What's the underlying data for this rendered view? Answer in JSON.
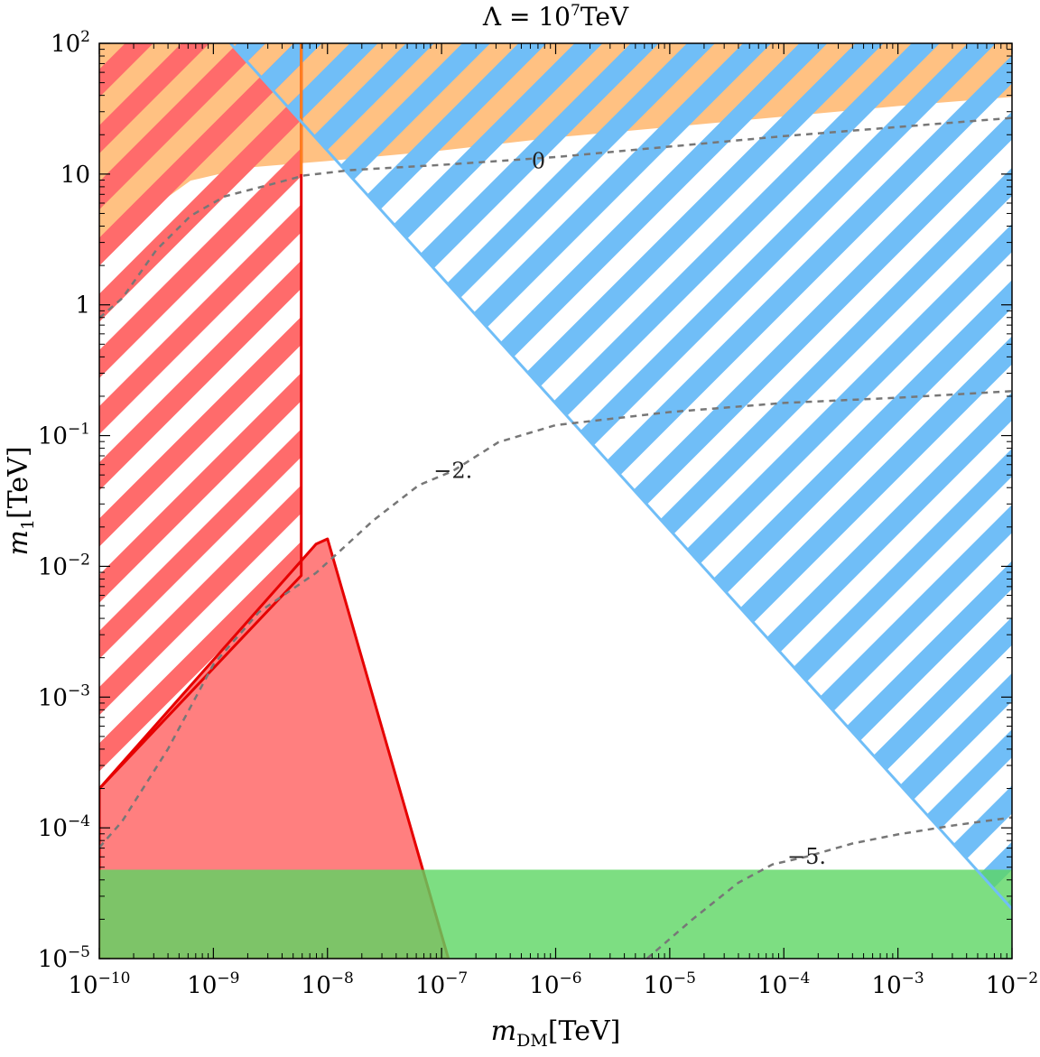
{
  "chart_data": {
    "type": "region-plot",
    "title": {
      "base": "Λ = 10",
      "sup": "7",
      "unit": "TeV"
    },
    "xlabel": {
      "sym": "m",
      "sub": "DM",
      "unit": "[TeV]"
    },
    "ylabel": {
      "sym": "m",
      "sub": "1",
      "unit": "[TeV]"
    },
    "x_scale": "log",
    "y_scale": "log",
    "x_range": [
      -10,
      -2
    ],
    "y_range": [
      -5,
      2
    ],
    "x_ticks": [
      {
        "v": -10,
        "base": "10",
        "sup": "−10"
      },
      {
        "v": -9,
        "base": "10",
        "sup": "−9"
      },
      {
        "v": -8,
        "base": "10",
        "sup": "−8"
      },
      {
        "v": -7,
        "base": "10",
        "sup": "−7"
      },
      {
        "v": -6,
        "base": "10",
        "sup": "−6"
      },
      {
        "v": -5,
        "base": "10",
        "sup": "−5"
      },
      {
        "v": -4,
        "base": "10",
        "sup": "−4"
      },
      {
        "v": -3,
        "base": "10",
        "sup": "−3"
      },
      {
        "v": -2,
        "base": "10",
        "sup": "−2"
      }
    ],
    "y_ticks": [
      {
        "v": -5,
        "base": "10",
        "sup": "−5"
      },
      {
        "v": -4,
        "base": "10",
        "sup": "−4"
      },
      {
        "v": -3,
        "base": "10",
        "sup": "−3"
      },
      {
        "v": -2,
        "base": "10",
        "sup": "−2"
      },
      {
        "v": -1,
        "base": "10",
        "sup": "−1"
      },
      {
        "v": 0,
        "base": "1",
        "sup": ""
      },
      {
        "v": 1,
        "base": "10",
        "sup": ""
      },
      {
        "v": 2,
        "base": "10",
        "sup": "2"
      }
    ],
    "regions": [
      {
        "name": "orange-solid",
        "fill": "#ffa64d",
        "opacity": 0.7,
        "boundary": [
          [
            -10,
            0.5
          ],
          [
            -9.6,
            0.7
          ],
          [
            -9.2,
            0.95
          ],
          [
            -8.7,
            1.05
          ],
          [
            -8.0,
            1.1
          ],
          [
            -7,
            1.18
          ],
          [
            -6,
            1.28
          ],
          [
            -5,
            1.36
          ],
          [
            -4,
            1.44
          ],
          [
            -3,
            1.52
          ],
          [
            -2,
            1.59
          ],
          [
            -2,
            2
          ],
          [
            -10,
            2
          ]
        ]
      },
      {
        "name": "red-hatched",
        "color": "#ff6b6b",
        "hatch": true,
        "boundary": [
          [
            -10,
            -3.7
          ],
          [
            -8.23,
            -2.07
          ],
          [
            -8.23,
            2
          ],
          [
            -10,
            2
          ]
        ]
      },
      {
        "name": "blue-hatched",
        "color": "#70bef7",
        "hatch": true,
        "boundary": [
          [
            -8.85,
            2
          ],
          [
            -2,
            2
          ],
          [
            -2,
            -4.62
          ]
        ]
      },
      {
        "name": "red-solid",
        "fill": "#ff7f7f",
        "opacity": 1.0,
        "stroke": "#e60000",
        "boundary": [
          [
            -10,
            -3.7
          ],
          [
            -8.1,
            -1.83
          ],
          [
            -8.0,
            -1.79
          ],
          [
            -6.94,
            -5
          ],
          [
            -10,
            -5
          ]
        ]
      },
      {
        "name": "green-solid",
        "fill": "#5cd663",
        "opacity": 0.8,
        "boundary": [
          [
            -10,
            -5
          ],
          [
            -2,
            -5
          ],
          [
            -2,
            -4.32
          ],
          [
            -10,
            -4.32
          ]
        ]
      }
    ],
    "boundary_lines": [
      {
        "name": "red-vertical",
        "color": "#e60000",
        "points": [
          [
            -10,
            -3.7
          ],
          [
            -8.23,
            -2.07
          ],
          [
            -8.23,
            2
          ]
        ]
      },
      {
        "name": "orange-vertical",
        "color": "#ff7f1e",
        "points": [
          [
            -8.23,
            1.0
          ],
          [
            -8.23,
            2
          ]
        ]
      },
      {
        "name": "blue-diagonal",
        "color": "#70bef7",
        "points": [
          [
            -8.85,
            2
          ],
          [
            -2,
            -4.62
          ]
        ]
      }
    ],
    "contours": [
      {
        "label": "0",
        "label_at": [
          -6.15,
          1.1
        ],
        "points": [
          [
            -10,
            -0.1
          ],
          [
            -9.8,
            0.05
          ],
          [
            -9.5,
            0.42
          ],
          [
            -9.2,
            0.68
          ],
          [
            -8.9,
            0.83
          ],
          [
            -8.5,
            0.92
          ],
          [
            -8.2,
            0.99
          ],
          [
            -7.8,
            1.03
          ],
          [
            -7,
            1.07
          ],
          [
            -6,
            1.13
          ],
          [
            -5,
            1.21
          ],
          [
            -4,
            1.29
          ],
          [
            -3,
            1.36
          ],
          [
            -2,
            1.43
          ]
        ]
      },
      {
        "label": "−2.",
        "label_at": [
          -6.9,
          -1.27
        ],
        "points": [
          [
            -10,
            -4.15
          ],
          [
            -9.8,
            -3.95
          ],
          [
            -9.4,
            -3.4
          ],
          [
            -9.0,
            -2.75
          ],
          [
            -8.6,
            -2.35
          ],
          [
            -8.1,
            -2.05
          ],
          [
            -7.6,
            -1.65
          ],
          [
            -7.2,
            -1.38
          ],
          [
            -6.9,
            -1.27
          ],
          [
            -6.5,
            -1.05
          ],
          [
            -6,
            -0.92
          ],
          [
            -5,
            -0.82
          ],
          [
            -4,
            -0.75
          ],
          [
            -3,
            -0.71
          ],
          [
            -2,
            -0.66
          ]
        ]
      },
      {
        "label": "−5.",
        "label_at": [
          -3.8,
          -4.22
        ],
        "points": [
          [
            -5.2,
            -5
          ],
          [
            -4.8,
            -4.7
          ],
          [
            -4.4,
            -4.42
          ],
          [
            -4.1,
            -4.28
          ],
          [
            -3.8,
            -4.22
          ],
          [
            -3.4,
            -4.12
          ],
          [
            -3,
            -4.05
          ],
          [
            -2.5,
            -3.98
          ],
          [
            -2,
            -3.92
          ]
        ]
      }
    ]
  }
}
